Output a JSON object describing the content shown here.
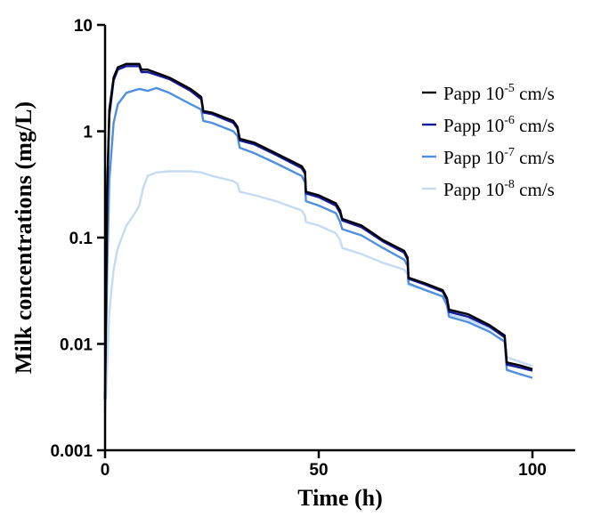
{
  "chart_data": {
    "type": "line",
    "xlabel": "Time (h)",
    "ylabel": "Milk concentrations (mg/L)",
    "y_scale": "log",
    "xlim": [
      0,
      110
    ],
    "ylim": [
      0.001,
      10
    ],
    "x_ticks": [
      0,
      50,
      100
    ],
    "x_tick_labels": [
      "0",
      "50",
      "100"
    ],
    "y_ticks": [
      0.001,
      0.01,
      0.1,
      1,
      10
    ],
    "y_tick_labels": [
      "0.001",
      "0.01",
      "0.1",
      "1",
      "10"
    ],
    "grid": false,
    "legend_position": "right",
    "series": [
      {
        "name": "Papp 10-5 cm/s",
        "legend": {
          "base": "Papp 10",
          "exp": "-5",
          "unit": " cm/s"
        },
        "color": "#000000",
        "points": [
          [
            0,
            0.003
          ],
          [
            0.5,
            0.3
          ],
          [
            1,
            1.6
          ],
          [
            2,
            3.2
          ],
          [
            3,
            4.0
          ],
          [
            5,
            4.3
          ],
          [
            8,
            4.3
          ],
          [
            8.5,
            3.8
          ],
          [
            10,
            3.8
          ],
          [
            15,
            3.2
          ],
          [
            20,
            2.5
          ],
          [
            22.5,
            2.1
          ],
          [
            23,
            1.55
          ],
          [
            25,
            1.5
          ],
          [
            30,
            1.25
          ],
          [
            31,
            1.1
          ],
          [
            31.5,
            0.85
          ],
          [
            35,
            0.78
          ],
          [
            40,
            0.62
          ],
          [
            46,
            0.47
          ],
          [
            46.8,
            0.42
          ],
          [
            47,
            0.27
          ],
          [
            50,
            0.25
          ],
          [
            54,
            0.21
          ],
          [
            55,
            0.18
          ],
          [
            55.5,
            0.15
          ],
          [
            60,
            0.13
          ],
          [
            65,
            0.095
          ],
          [
            70,
            0.075
          ],
          [
            70.8,
            0.065
          ],
          [
            71,
            0.042
          ],
          [
            75,
            0.037
          ],
          [
            79,
            0.032
          ],
          [
            80,
            0.027
          ],
          [
            80.5,
            0.021
          ],
          [
            85,
            0.019
          ],
          [
            90,
            0.015
          ],
          [
            93.5,
            0.012
          ],
          [
            94,
            0.0067
          ],
          [
            97,
            0.0063
          ],
          [
            100,
            0.0058
          ]
        ]
      },
      {
        "name": "Papp 10-6 cm/s",
        "legend": {
          "base": "Papp 10",
          "exp": "-6",
          "unit": " cm/s"
        },
        "color": "#141a9c",
        "points": [
          [
            0,
            0.003
          ],
          [
            0.5,
            0.25
          ],
          [
            1,
            1.4
          ],
          [
            2,
            3.0
          ],
          [
            3,
            3.8
          ],
          [
            5,
            4.1
          ],
          [
            8,
            4.1
          ],
          [
            8.5,
            3.6
          ],
          [
            10,
            3.6
          ],
          [
            15,
            3.1
          ],
          [
            20,
            2.4
          ],
          [
            22.5,
            2.0
          ],
          [
            23,
            1.5
          ],
          [
            25,
            1.45
          ],
          [
            30,
            1.2
          ],
          [
            31,
            1.05
          ],
          [
            31.5,
            0.82
          ],
          [
            35,
            0.75
          ],
          [
            40,
            0.6
          ],
          [
            46,
            0.45
          ],
          [
            46.8,
            0.4
          ],
          [
            47,
            0.26
          ],
          [
            50,
            0.24
          ],
          [
            54,
            0.2
          ],
          [
            55,
            0.17
          ],
          [
            55.5,
            0.145
          ],
          [
            60,
            0.125
          ],
          [
            65,
            0.092
          ],
          [
            70,
            0.072
          ],
          [
            70.8,
            0.062
          ],
          [
            71,
            0.041
          ],
          [
            75,
            0.036
          ],
          [
            79,
            0.031
          ],
          [
            80,
            0.026
          ],
          [
            80.5,
            0.02
          ],
          [
            85,
            0.018
          ],
          [
            90,
            0.0145
          ],
          [
            93.5,
            0.0115
          ],
          [
            94,
            0.0064
          ],
          [
            97,
            0.006
          ],
          [
            100,
            0.0056
          ]
        ]
      },
      {
        "name": "Papp 10-7 cm/s",
        "legend": {
          "base": "Papp 10",
          "exp": "-7",
          "unit": " cm/s"
        },
        "color": "#4f8fe0",
        "points": [
          [
            0,
            0.003
          ],
          [
            0.5,
            0.05
          ],
          [
            1,
            0.35
          ],
          [
            2,
            1.2
          ],
          [
            3,
            1.8
          ],
          [
            5,
            2.3
          ],
          [
            8,
            2.5
          ],
          [
            10,
            2.4
          ],
          [
            12,
            2.55
          ],
          [
            15,
            2.3
          ],
          [
            20,
            1.8
          ],
          [
            22.5,
            1.6
          ],
          [
            23,
            1.25
          ],
          [
            25,
            1.2
          ],
          [
            30,
            1.0
          ],
          [
            31,
            0.9
          ],
          [
            31.5,
            0.7
          ],
          [
            35,
            0.62
          ],
          [
            40,
            0.5
          ],
          [
            46,
            0.38
          ],
          [
            46.8,
            0.33
          ],
          [
            47,
            0.22
          ],
          [
            50,
            0.2
          ],
          [
            54,
            0.17
          ],
          [
            55,
            0.14
          ],
          [
            55.5,
            0.12
          ],
          [
            60,
            0.105
          ],
          [
            65,
            0.08
          ],
          [
            70,
            0.062
          ],
          [
            70.8,
            0.054
          ],
          [
            71,
            0.037
          ],
          [
            75,
            0.032
          ],
          [
            79,
            0.028
          ],
          [
            80,
            0.023
          ],
          [
            80.5,
            0.018
          ],
          [
            85,
            0.016
          ],
          [
            90,
            0.013
          ],
          [
            93.5,
            0.0105
          ],
          [
            94,
            0.0057
          ],
          [
            97,
            0.0052
          ],
          [
            100,
            0.0048
          ]
        ]
      },
      {
        "name": "Papp 10-8 cm/s",
        "legend": {
          "base": "Papp 10",
          "exp": "-8",
          "unit": " cm/s"
        },
        "color": "#c4dcf3",
        "points": [
          [
            0,
            0.002
          ],
          [
            0.5,
            0.006
          ],
          [
            1,
            0.02
          ],
          [
            2,
            0.05
          ],
          [
            3,
            0.08
          ],
          [
            5,
            0.13
          ],
          [
            7,
            0.17
          ],
          [
            8,
            0.2
          ],
          [
            9,
            0.3
          ],
          [
            10,
            0.38
          ],
          [
            12,
            0.41
          ],
          [
            15,
            0.42
          ],
          [
            20,
            0.42
          ],
          [
            22.5,
            0.41
          ],
          [
            25,
            0.38
          ],
          [
            30,
            0.34
          ],
          [
            31,
            0.32
          ],
          [
            31.5,
            0.27
          ],
          [
            35,
            0.25
          ],
          [
            40,
            0.22
          ],
          [
            46,
            0.18
          ],
          [
            46.8,
            0.16
          ],
          [
            47,
            0.14
          ],
          [
            50,
            0.13
          ],
          [
            54,
            0.11
          ],
          [
            55,
            0.095
          ],
          [
            55.5,
            0.08
          ],
          [
            60,
            0.07
          ],
          [
            65,
            0.058
          ],
          [
            70,
            0.05
          ],
          [
            70.8,
            0.045
          ],
          [
            71,
            0.036
          ],
          [
            75,
            0.032
          ],
          [
            79,
            0.028
          ],
          [
            80,
            0.025
          ],
          [
            80.5,
            0.019
          ],
          [
            85,
            0.017
          ],
          [
            90,
            0.014
          ],
          [
            93.5,
            0.012
          ],
          [
            94,
            0.0075
          ],
          [
            97,
            0.0068
          ],
          [
            100,
            0.0062
          ]
        ]
      }
    ]
  }
}
